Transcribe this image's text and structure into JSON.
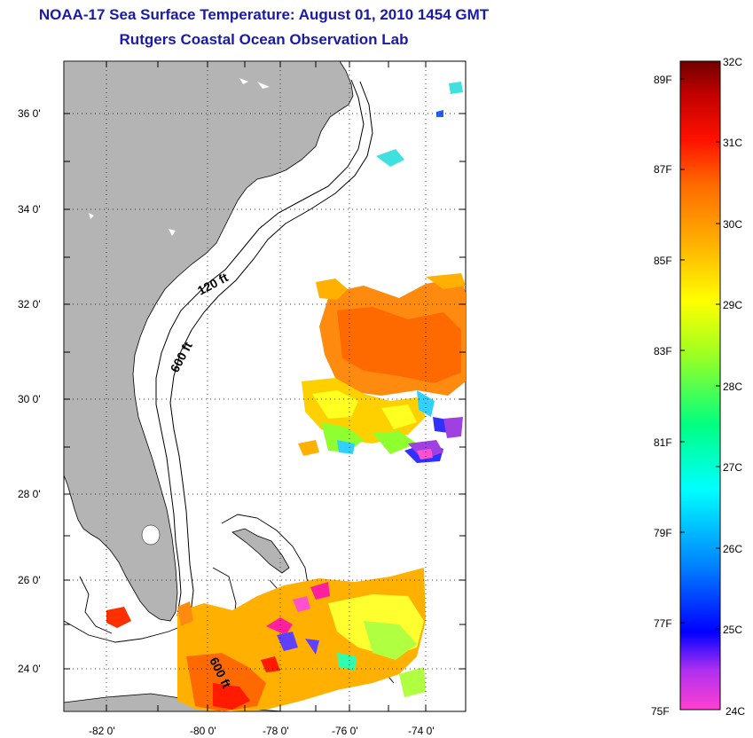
{
  "header": {
    "title": "NOAA-17 Sea Surface Temperature:  August 01, 2010 1454 GMT",
    "subtitle": "Rutgers Coastal Ocean Observation Lab"
  },
  "map": {
    "lat_ticks": [
      "36 0'",
      "34 0'",
      "32 0'",
      "30 0'",
      "28 0'",
      "26 0'",
      "24 0'"
    ],
    "lon_ticks": [
      "-82 0'",
      "-80 0'",
      "-78 0'",
      "-76 0'",
      "-74 0'"
    ],
    "contour_labels": [
      "120 ft",
      "600 ft",
      "600 ft"
    ],
    "colors": {
      "land": "#b4b4b4",
      "ocean": "#ffffff",
      "contour": "#000000"
    }
  },
  "colorbar": {
    "fahrenheit_labels": [
      "89F",
      "87F",
      "85F",
      "83F",
      "81F",
      "79F",
      "77F",
      "75F"
    ],
    "celsius_labels": [
      "32C",
      "31C",
      "30C",
      "29C",
      "28C",
      "27C",
      "26C",
      "25C",
      "24C"
    ],
    "range_c": [
      24,
      32
    ],
    "colors": [
      "#ff40d0",
      "#8a20ff",
      "#0000ff",
      "#0090ff",
      "#00ffff",
      "#00ff80",
      "#80ff40",
      "#ffff00",
      "#ffb000",
      "#ff6a00",
      "#ff1000",
      "#c00000",
      "#700000"
    ]
  }
}
